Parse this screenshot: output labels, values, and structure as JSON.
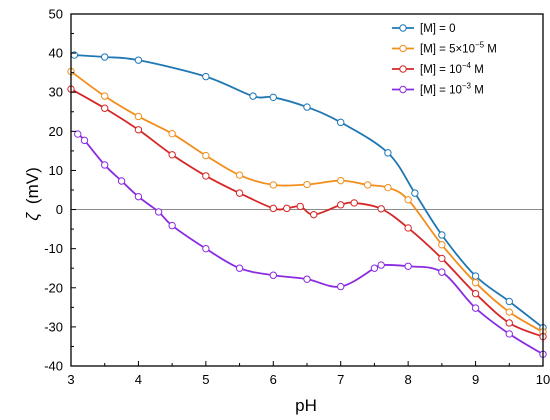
{
  "chart_data": {
    "type": "line",
    "xlabel": "pH",
    "ylabel_symbol": "ζ",
    "ylabel_unit": "(mV)",
    "xlim": [
      3,
      10
    ],
    "ylim": [
      -40,
      50
    ],
    "xticks": [
      3,
      4,
      5,
      6,
      7,
      8,
      9,
      10
    ],
    "yticks": [
      -40,
      -30,
      -20,
      -10,
      0,
      10,
      20,
      30,
      40,
      50
    ],
    "grid": false,
    "zero_line": true,
    "legend_position": "top-right",
    "series": [
      {
        "name": "[M] = 0",
        "legend_parts": [
          [
            "[M] = 0",
            false
          ]
        ],
        "color": "#1f77b4",
        "x": [
          3.05,
          3.5,
          4.0,
          5.0,
          5.7,
          6.0,
          6.5,
          7.0,
          7.7,
          8.1,
          8.5,
          9.0,
          9.5,
          10.0
        ],
        "y": [
          39.5,
          39.0,
          38.2,
          34.0,
          29.0,
          28.7,
          26.2,
          22.3,
          14.5,
          4.2,
          -6.5,
          -17.0,
          -23.5,
          -30.2
        ]
      },
      {
        "name": "[M] = 5×10−5 M",
        "legend_parts": [
          [
            "[M] = 5×10",
            false
          ],
          [
            "−5",
            true
          ],
          [
            " M",
            false
          ]
        ],
        "color": "#f28e1c",
        "x": [
          3.0,
          3.5,
          4.0,
          4.5,
          5.0,
          5.5,
          6.0,
          6.5,
          7.0,
          7.4,
          7.7,
          8.0,
          8.5,
          9.0,
          9.5,
          10.0
        ],
        "y": [
          35.3,
          29.0,
          23.8,
          19.4,
          13.8,
          8.8,
          6.3,
          6.4,
          7.4,
          6.3,
          5.6,
          2.5,
          -9.0,
          -18.7,
          -26.2,
          -31.3
        ]
      },
      {
        "name": "[M] = 10−4 M",
        "legend_parts": [
          [
            "[M] = 10",
            false
          ],
          [
            "−4",
            true
          ],
          [
            " M",
            false
          ]
        ],
        "color": "#d62728",
        "x": [
          3.0,
          3.5,
          4.0,
          4.5,
          5.0,
          5.5,
          6.0,
          6.2,
          6.4,
          6.6,
          7.0,
          7.2,
          7.6,
          8.0,
          8.5,
          9.0,
          9.5,
          10.0
        ],
        "y": [
          30.8,
          25.9,
          20.4,
          14.0,
          8.6,
          4.2,
          0.3,
          0.3,
          0.8,
          -1.3,
          1.2,
          1.7,
          0.2,
          -4.7,
          -12.5,
          -21.5,
          -29.0,
          -32.5
        ]
      },
      {
        "name": "[M] = 10−3 M",
        "legend_parts": [
          [
            "[M] = 10",
            false
          ],
          [
            "−3",
            true
          ],
          [
            " M",
            false
          ]
        ],
        "color": "#8a2be2",
        "x": [
          3.1,
          3.2,
          3.5,
          3.75,
          4.0,
          4.3,
          4.5,
          5.0,
          5.5,
          6.0,
          6.5,
          7.0,
          7.5,
          7.6,
          8.0,
          8.5,
          9.0,
          9.5,
          10.0
        ],
        "y": [
          19.3,
          17.7,
          11.4,
          7.3,
          3.3,
          -0.6,
          -4.1,
          -10.0,
          -15.0,
          -16.8,
          -17.8,
          -19.7,
          -15.0,
          -14.2,
          -14.5,
          -16.0,
          -25.2,
          -31.8,
          -37.0
        ]
      }
    ]
  }
}
